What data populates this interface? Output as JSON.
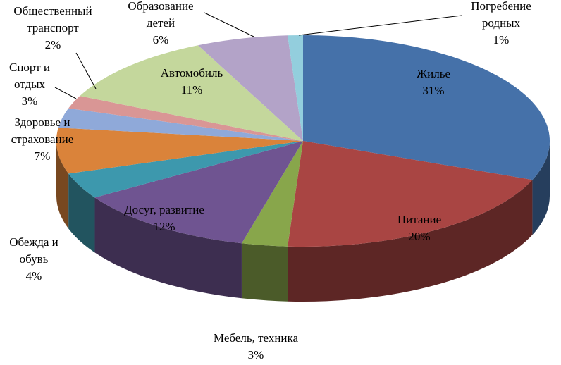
{
  "chart_data": {
    "type": "pie3d",
    "categories": [
      "Жилье",
      "Питание",
      "Мебель, техника",
      "Досуг, развитие",
      "Обежда и\nобувь",
      "Здоровье  и\nстрахование",
      "Спорт и\nотдых",
      "Общественный\nтранспорт",
      "Автомобиль",
      "Образование\nдетей",
      "Погребение\nродных"
    ],
    "values": [
      31,
      20,
      3,
      12,
      4,
      7,
      3,
      2,
      11,
      6,
      1
    ],
    "value_labels": [
      "31%",
      "20%",
      "3%",
      "12%",
      "4%",
      "7%",
      "3%",
      "2%",
      "11%",
      "6%",
      "1%"
    ],
    "colors": [
      "#4571a9",
      "#a94543",
      "#88a64b",
      "#6f5491",
      "#3d98ad",
      "#da833a",
      "#8fa9d9",
      "#d99695",
      "#c4d79c",
      "#b3a3c8",
      "#93cedd"
    ]
  }
}
